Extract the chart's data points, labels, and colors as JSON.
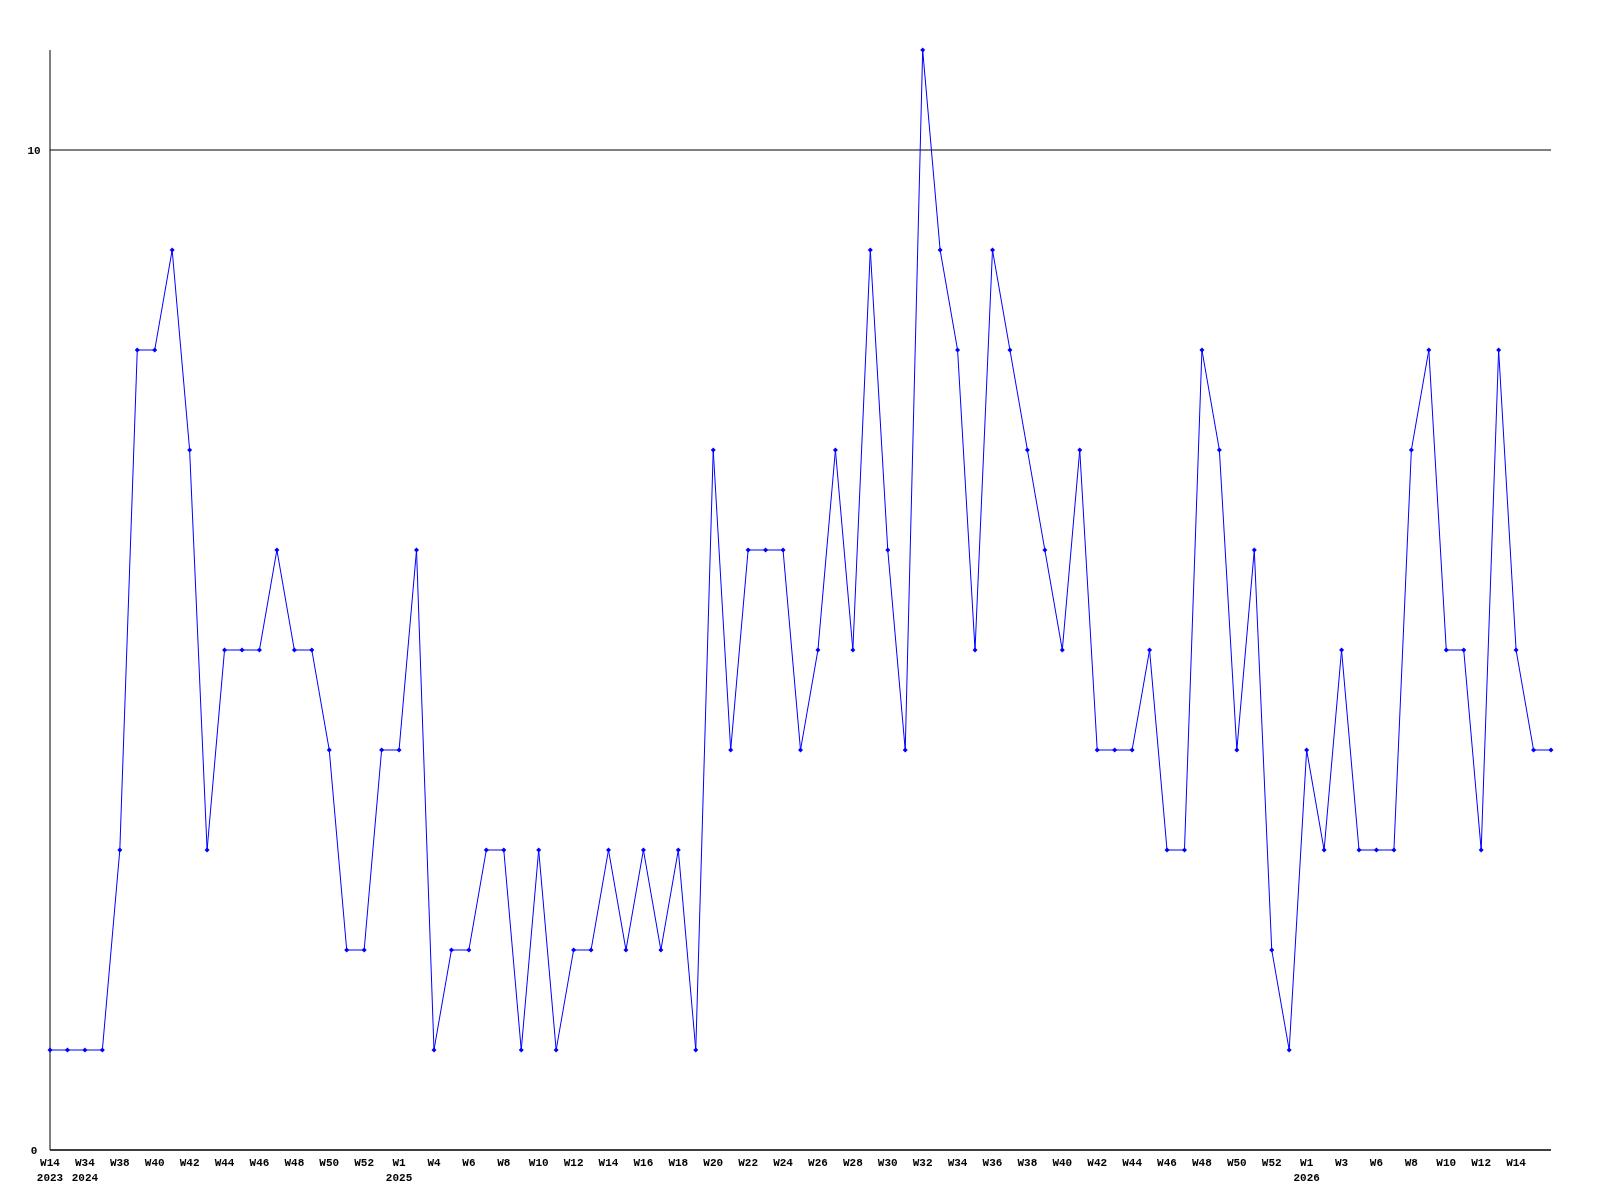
{
  "chart_data": {
    "type": "line",
    "categories": [
      "W14\n2023",
      null,
      "W34\n2024",
      null,
      "W38",
      null,
      "W40",
      null,
      "W42",
      null,
      "W44",
      null,
      "W46",
      null,
      "W48",
      null,
      "W50",
      null,
      "W52",
      null,
      "W1\n2025",
      null,
      "W4",
      null,
      "W6",
      null,
      "W8",
      null,
      "W10",
      null,
      "W12",
      null,
      "W14",
      null,
      "W16",
      null,
      "W18",
      null,
      "W20",
      null,
      "W22",
      null,
      "W24",
      null,
      "W26",
      null,
      "W28",
      null,
      "W30",
      null,
      "W32",
      null,
      "W34",
      null,
      "W36",
      null,
      "W38",
      null,
      "W40",
      null,
      "W42",
      null,
      "W44",
      null,
      "W46",
      null,
      "W48",
      null,
      "W50",
      null,
      "W52",
      null,
      "W1\n2026",
      null,
      "W3",
      null,
      "W6",
      null,
      "W8",
      null,
      "W10",
      null,
      "W12",
      null,
      "W14",
      null,
      null
    ],
    "series": [
      {
        "color": "#0000ff",
        "values": [
          1,
          1,
          1,
          1,
          3,
          8,
          8,
          9,
          7,
          3,
          5,
          5,
          5,
          6,
          5,
          5,
          4,
          2,
          2,
          4,
          4,
          6,
          1,
          2,
          2,
          3,
          3,
          1,
          3,
          1,
          2,
          2,
          3,
          2,
          3,
          2,
          3,
          1,
          7,
          4,
          6,
          6,
          6,
          4,
          5,
          7,
          5,
          9,
          6,
          4,
          11,
          9,
          8,
          5,
          9,
          8,
          7,
          6,
          5,
          7,
          4,
          4,
          4,
          5,
          3,
          3,
          8,
          7,
          4,
          6,
          2,
          1,
          4,
          3,
          5,
          3,
          3,
          3,
          7,
          8,
          5,
          5,
          3,
          8,
          5,
          4,
          4
        ]
      }
    ],
    "ylim": [
      0,
      11
    ],
    "yticks": [
      0,
      10
    ],
    "grid": "y",
    "marker": "diamond",
    "line_style": "solid"
  }
}
